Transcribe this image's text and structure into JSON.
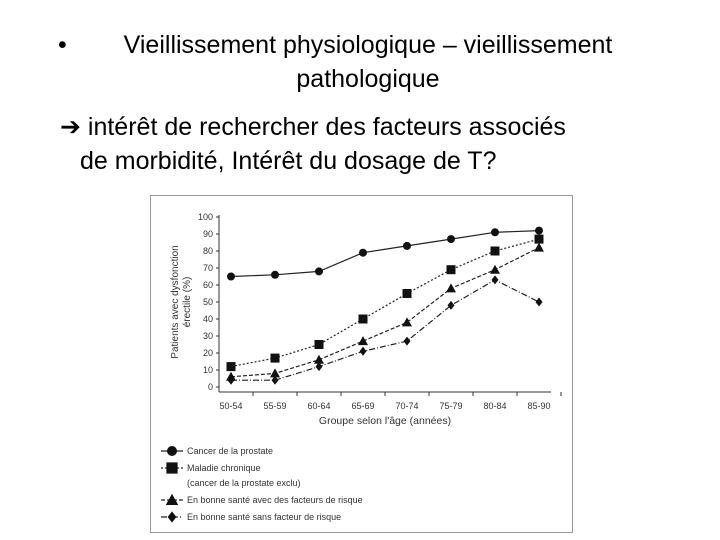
{
  "slide": {
    "bullet_line1": "Vieillissement physiologique – vieillissement",
    "bullet_line2": "pathologique",
    "arrow_icon": "right-arrow-icon",
    "arrow_text_line1": "intérêt de rechercher des facteurs associés",
    "arrow_text_line2": "de  morbidité, Intérêt du dosage de T?"
  },
  "chart_data": {
    "type": "line",
    "categories": [
      "50-54",
      "55-59",
      "60-64",
      "65-69",
      "70-74",
      "75-79",
      "80-84",
      "85-90"
    ],
    "xlabel": "Groupe selon l'âge (années)",
    "ylabel_line1": "Patients avec dysfonction",
    "ylabel_line2": "érectile (%)",
    "ylim": [
      0,
      100
    ],
    "yticks": [
      0,
      10,
      20,
      30,
      40,
      50,
      60,
      70,
      80,
      90,
      100
    ],
    "grid": false,
    "legend": "bottom-left",
    "series": [
      {
        "name": "Cancer de la prostate",
        "marker": "circle",
        "dash": "solid",
        "values": [
          65,
          66,
          68,
          79,
          83,
          87,
          91,
          92
        ]
      },
      {
        "name": "Maladie chronique",
        "name_line2": "(cancer de la prostate exclu)",
        "marker": "square",
        "dash": "dotted",
        "values": [
          12,
          17,
          25,
          40,
          55,
          69,
          80,
          87
        ]
      },
      {
        "name": "En bonne santé avec des facteurs de risque",
        "marker": "triangle",
        "dash": "dashed",
        "values": [
          6,
          8,
          16,
          27,
          38,
          58,
          69,
          82
        ]
      },
      {
        "name": "En bonne santé sans facteur de risque",
        "marker": "diamond",
        "dash": "dashdot",
        "values": [
          4,
          4,
          12,
          21,
          27,
          48,
          63,
          50
        ]
      }
    ]
  }
}
